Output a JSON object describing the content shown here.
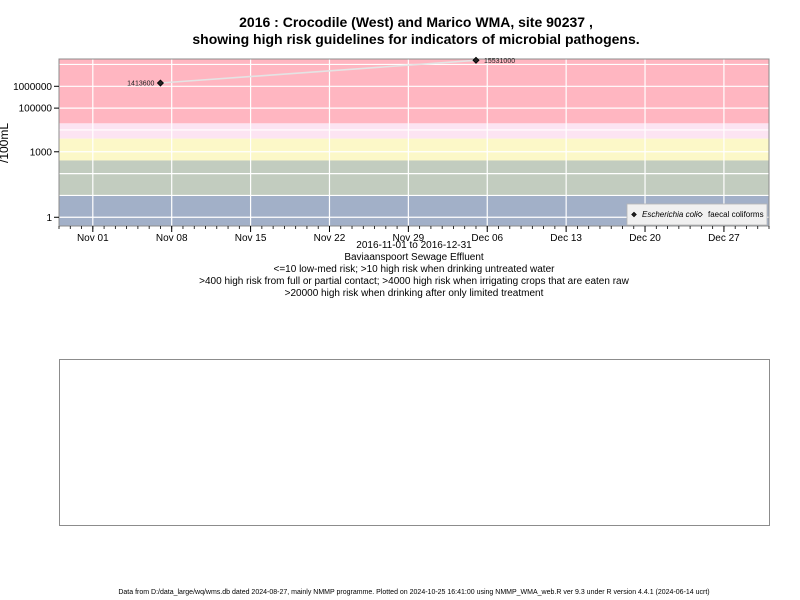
{
  "title_line1": "2016 : Crocodile (West) and Marico WMA, site 90237 ,",
  "title_line2": "showing high risk guidelines for indicators of microbial pathogens.",
  "caption": {
    "line1": "2016-11-01 to 2016-12-31",
    "line2": "Baviaanspoort Sewage Effluent",
    "line3": "<=10 low-med risk; >10 high risk when drinking untreated water",
    "line4": ">400 high risk from full or partial contact; >4000 high risk when irrigating crops that are eaten raw",
    "line5": ">20000 high risk when drinking after only limited treatment"
  },
  "footer": "Data from D:/data_large/wq/wms.db dated 2024-08-27, mainly NMMP programme. Plotted on 2024-10-25 16:41:00 using NMMP_WMA_web.R ver 9.3 under R version 4.4.1 (2024-06-14 ucrt)",
  "chart_data": {
    "type": "scatter",
    "ylabel": "/100mL",
    "y_scale": "log10",
    "y_ticks": [
      1,
      1000,
      100000,
      1000000
    ],
    "y_tick_labels": [
      "1",
      "1000",
      "100000",
      "1000000"
    ],
    "x_ticks": [
      "2016-11-01",
      "2016-11-08",
      "2016-11-15",
      "2016-11-22",
      "2016-11-29",
      "2016-12-06",
      "2016-12-13",
      "2016-12-20",
      "2016-12-27"
    ],
    "x_tick_labels": [
      "Nov 01",
      "Nov 08",
      "Nov 15",
      "Nov 22",
      "Nov 29",
      "Dec 06",
      "Dec 13",
      "Dec 20",
      "Dec 27"
    ],
    "risk_bands": [
      {
        "from": 20000,
        "to": null,
        "color": "#ffb6c1"
      },
      {
        "from": 4000,
        "to": 20000,
        "color": "#fce4f2"
      },
      {
        "from": 400,
        "to": 4000,
        "color": "#fcf8c8"
      },
      {
        "from": 10,
        "to": 400,
        "color": "#c2ccbf"
      },
      {
        "from": null,
        "to": 10,
        "color": "#a2b0c8"
      }
    ],
    "series": [
      {
        "name": "Escherichia coli",
        "marker": "filled-diamond",
        "color": "#222222",
        "points": [
          {
            "x": "2016-11-07",
            "y": 1413600,
            "label": "1413600"
          },
          {
            "x": "2016-12-05",
            "y": 15531000,
            "label": "15531000"
          }
        ]
      },
      {
        "name": "faecal coliforms",
        "marker": "open-diamond",
        "color": "#444444",
        "points": []
      }
    ],
    "legend_position": "bottom-right",
    "grid": true
  }
}
